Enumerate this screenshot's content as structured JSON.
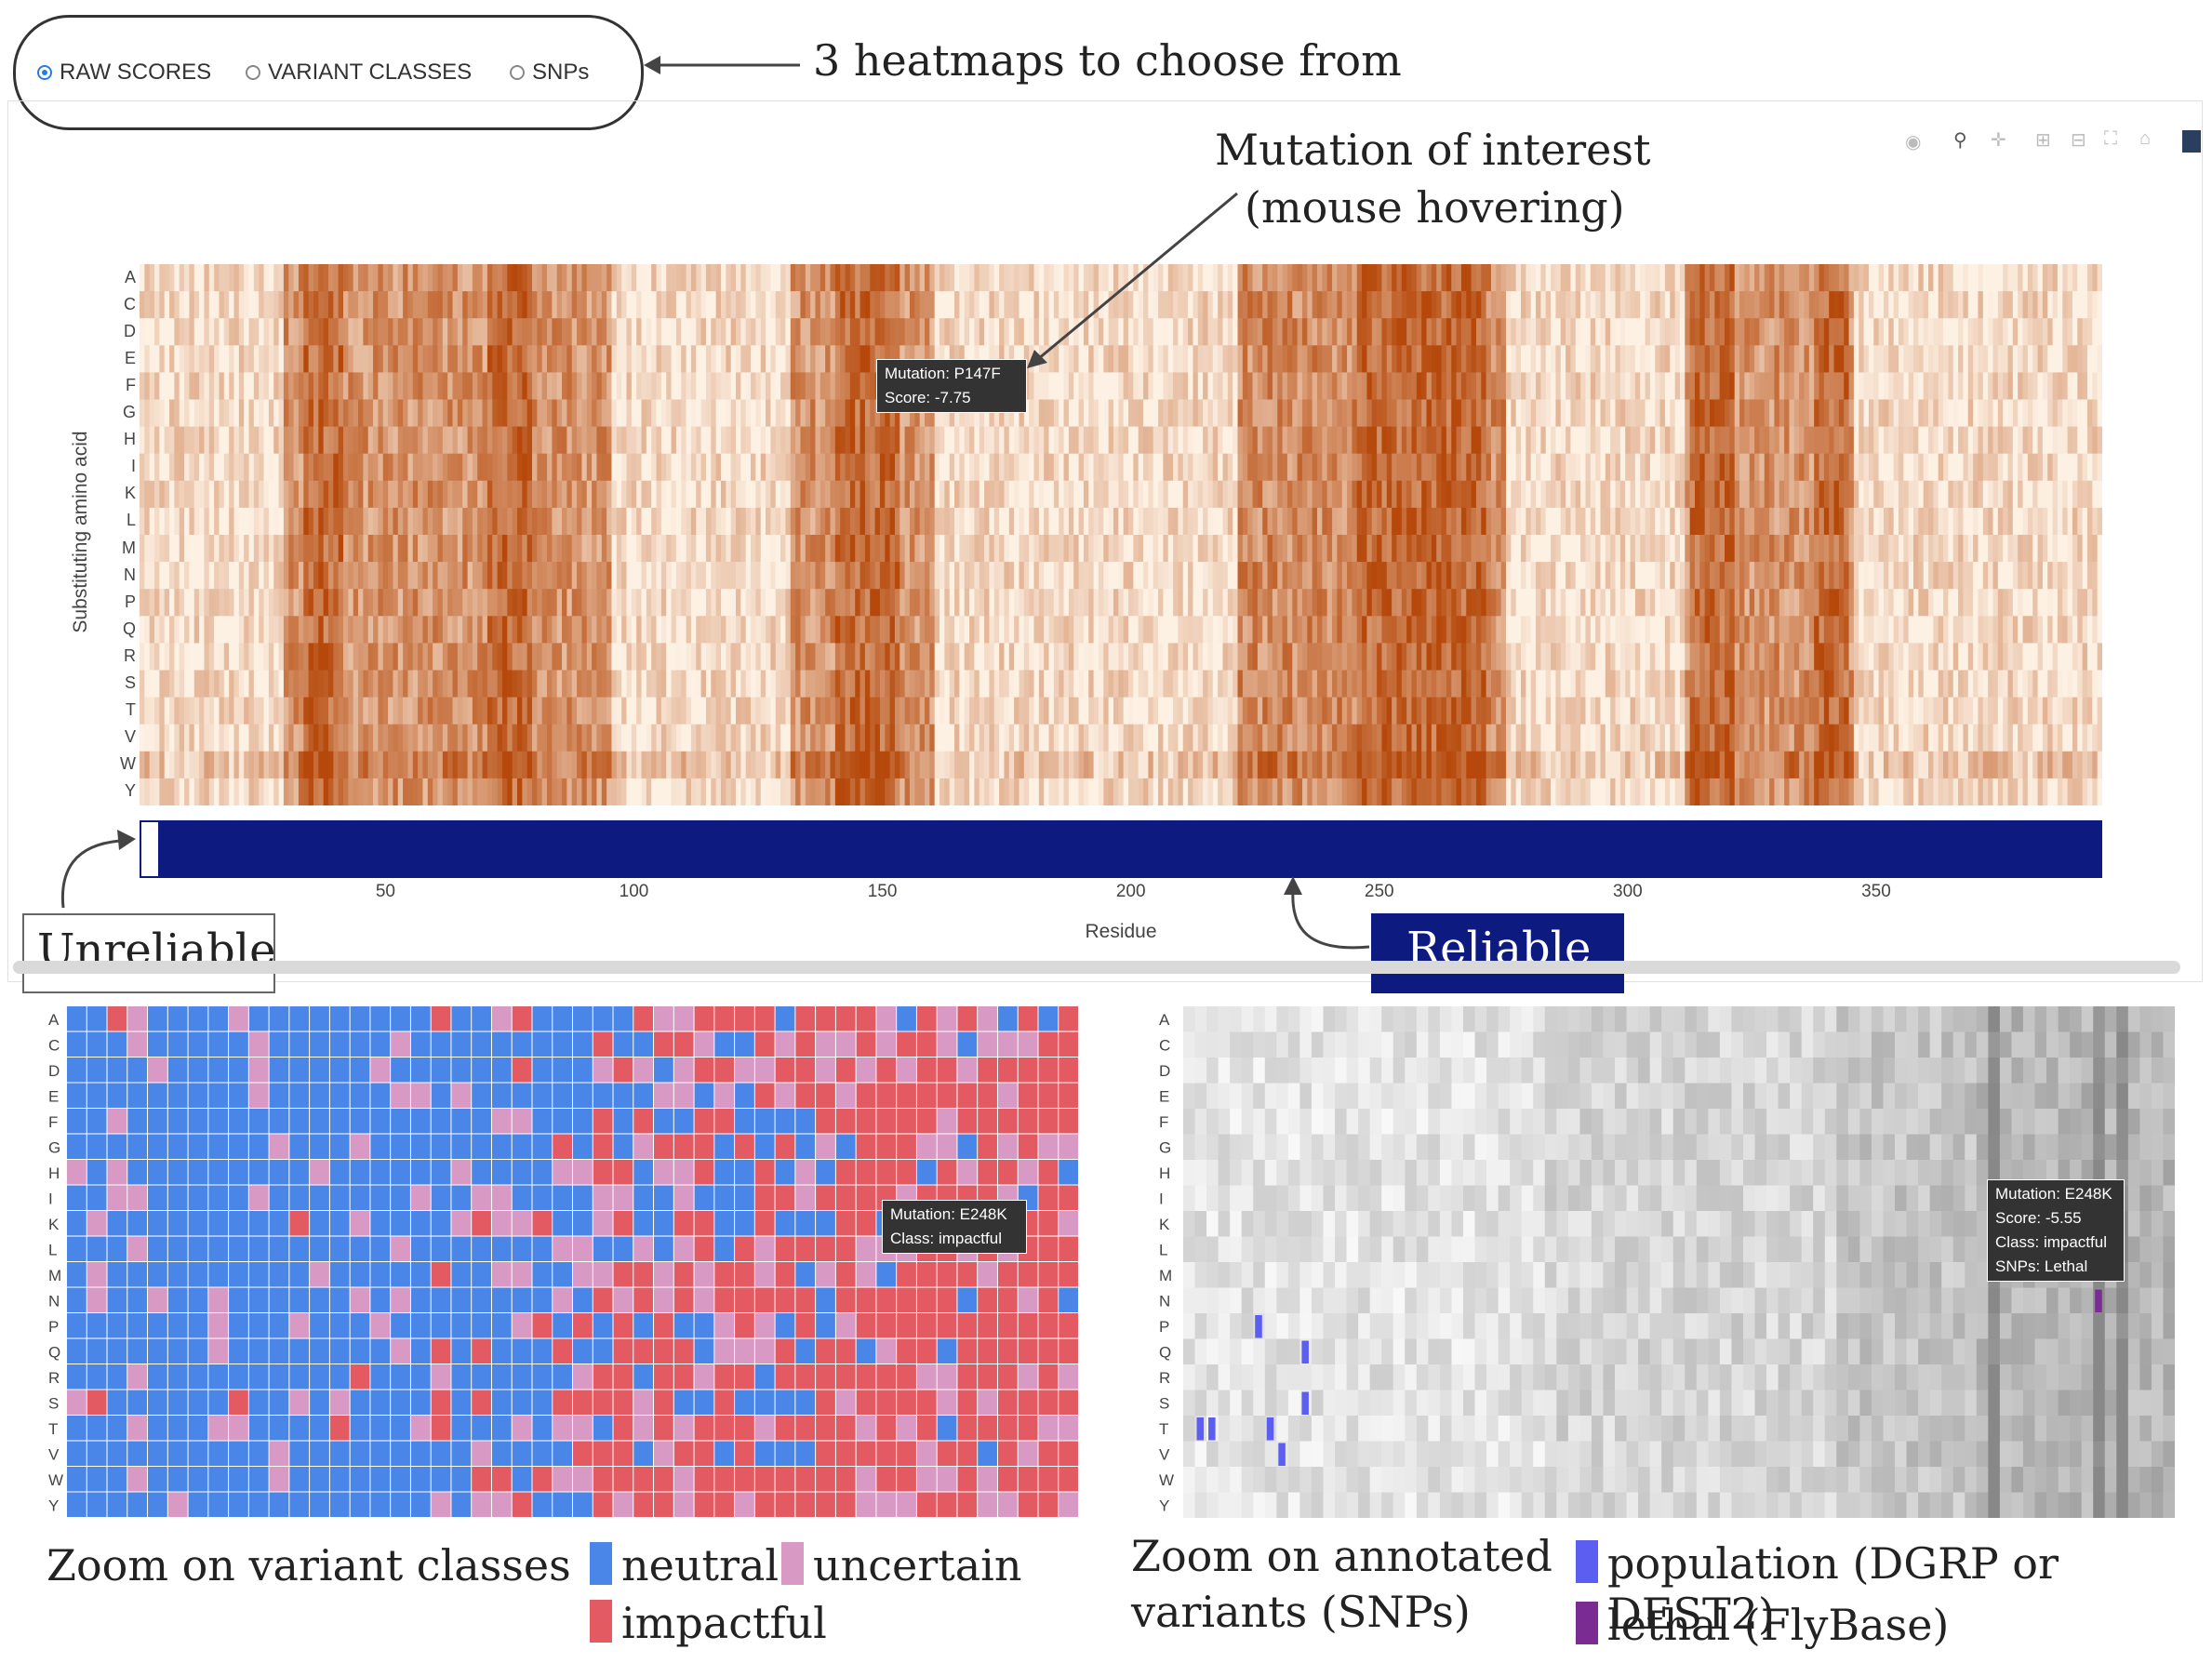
{
  "heatmap_selector": {
    "options": [
      {
        "label": "RAW SCORES",
        "checked": true
      },
      {
        "label": "VARIANT CLASSES",
        "checked": false
      },
      {
        "label": "SNPs",
        "checked": false
      }
    ]
  },
  "annotations": {
    "selector_note": "3 heatmaps to choose from",
    "mutation_note_line1": "Mutation of interest",
    "mutation_note_line2": "(mouse hovering)",
    "unreliable": "Unreliable",
    "reliable": "Reliable",
    "classes_caption": "Zoom on variant classes",
    "snps_caption_line1": "Zoom on annotated",
    "snps_caption_line2": "variants (SNPs)"
  },
  "modebar": [
    "camera-icon",
    "zoom-icon",
    "pan-icon",
    "zoom-in-icon",
    "zoom-out-icon",
    "autoscale-icon",
    "reset-axes-icon",
    "plotly-logo-icon"
  ],
  "raw_scores": {
    "ylabel": "Substituting amino acid",
    "xlabel": "Residue",
    "amino_acids": [
      "A",
      "C",
      "D",
      "E",
      "F",
      "G",
      "H",
      "I",
      "K",
      "L",
      "M",
      "N",
      "P",
      "Q",
      "R",
      "S",
      "T",
      "V",
      "W",
      "Y"
    ],
    "xticks": [
      "50",
      "100",
      "150",
      "200",
      "250",
      "300",
      "350"
    ],
    "tooltip_line1": "Mutation: P147F",
    "tooltip_line2": "Score: -7.75",
    "colors": {
      "low": "#fdf1e4",
      "high": "#b5480a",
      "reliability_bar": "#0d1a80"
    }
  },
  "variant_classes": {
    "tooltip_line1": "Mutation: E248K",
    "tooltip_line2": "Class: impactful",
    "legend": [
      {
        "label": "neutral",
        "color": "#4a86e8"
      },
      {
        "label": "uncertain",
        "color": "#d89ac4"
      },
      {
        "label": "impactful",
        "color": "#e35a62"
      }
    ]
  },
  "snps": {
    "tooltip_line1": "Mutation: E248K",
    "tooltip_line2": "Score: -5.55",
    "tooltip_line3": "Class: impactful",
    "tooltip_line4": "SNPs: Lethal",
    "legend": [
      {
        "label": "population (DGRP or DEST2)",
        "color": "#5b5ef0"
      },
      {
        "label": "lethal (FlyBase)",
        "color": "#7a2c93"
      }
    ]
  }
}
